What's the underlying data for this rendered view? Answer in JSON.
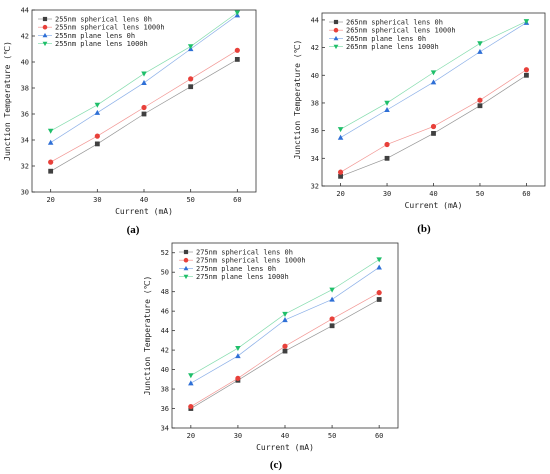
{
  "chart_data": [
    {
      "type": "line",
      "caption": "(a)",
      "title": "",
      "xlabel": "Current (mA)",
      "ylabel": "Junction Temperature (℃)",
      "xlim": [
        16,
        64
      ],
      "ylim": [
        30,
        44
      ],
      "xticks": [
        20,
        30,
        40,
        50,
        60
      ],
      "yticks": [
        30,
        32,
        34,
        36,
        38,
        40,
        42,
        44
      ],
      "legend_position": "top-left",
      "grid": false,
      "x": [
        20,
        30,
        40,
        50,
        60
      ],
      "series": [
        {
          "name": "255nm spherical lens 0h",
          "marker": "square",
          "color": "#404040",
          "values": [
            31.6,
            33.7,
            36.0,
            38.1,
            40.2
          ]
        },
        {
          "name": "255nm spherical lens 1000h",
          "marker": "circle",
          "color": "#e8403a",
          "values": [
            32.3,
            34.3,
            36.5,
            38.7,
            40.9
          ]
        },
        {
          "name": "255nm plane lens 0h",
          "marker": "triangle-up",
          "color": "#2e6fd6",
          "values": [
            33.8,
            36.1,
            38.4,
            41.0,
            43.6
          ]
        },
        {
          "name": "255nm plane lens 1000h",
          "marker": "triangle-down",
          "color": "#1fbf6a",
          "values": [
            34.7,
            36.7,
            39.1,
            41.2,
            43.8
          ]
        }
      ]
    },
    {
      "type": "line",
      "caption": "(b)",
      "title": "",
      "xlabel": "Current (mA)",
      "ylabel": "Junction Temperature (℃)",
      "xlim": [
        16,
        64
      ],
      "ylim": [
        32,
        44.5
      ],
      "xticks": [
        20,
        30,
        40,
        50,
        60
      ],
      "yticks": [
        32,
        34,
        36,
        38,
        40,
        42,
        44
      ],
      "legend_position": "top-left",
      "grid": false,
      "x": [
        20,
        30,
        40,
        50,
        60
      ],
      "series": [
        {
          "name": "265nm spherical lens 0h",
          "marker": "square",
          "color": "#404040",
          "values": [
            32.7,
            34.0,
            35.8,
            37.8,
            40.0
          ]
        },
        {
          "name": "265nm spherical lens 1000h",
          "marker": "circle",
          "color": "#e8403a",
          "values": [
            33.0,
            35.0,
            36.3,
            38.2,
            40.4
          ]
        },
        {
          "name": "265nm plane lens 0h",
          "marker": "triangle-up",
          "color": "#2e6fd6",
          "values": [
            35.5,
            37.5,
            39.5,
            41.7,
            43.8
          ]
        },
        {
          "name": "265nm plane lens 1000h",
          "marker": "triangle-down",
          "color": "#1fbf6a",
          "values": [
            36.1,
            38.0,
            40.2,
            42.3,
            43.9
          ]
        }
      ]
    },
    {
      "type": "line",
      "caption": "(c)",
      "title": "",
      "xlabel": "Current (mA)",
      "ylabel": "Junction Temperature (℃)",
      "xlim": [
        16,
        64
      ],
      "ylim": [
        34,
        53
      ],
      "xticks": [
        20,
        30,
        40,
        50,
        60
      ],
      "yticks": [
        34,
        36,
        38,
        40,
        42,
        44,
        46,
        48,
        50,
        52
      ],
      "legend_position": "top-left",
      "grid": false,
      "x": [
        20,
        30,
        40,
        50,
        60
      ],
      "series": [
        {
          "name": "275nm spherical lens 0h",
          "marker": "square",
          "color": "#404040",
          "values": [
            36.0,
            38.9,
            41.9,
            44.5,
            47.2
          ]
        },
        {
          "name": "275nm spherical lens 1000h",
          "marker": "circle",
          "color": "#e8403a",
          "values": [
            36.2,
            39.1,
            42.4,
            45.2,
            47.9
          ]
        },
        {
          "name": "275nm plane lens 0h",
          "marker": "triangle-up",
          "color": "#2e6fd6",
          "values": [
            38.6,
            41.4,
            45.1,
            47.2,
            50.5
          ]
        },
        {
          "name": "275nm plane lens 1000h",
          "marker": "triangle-down",
          "color": "#1fbf6a",
          "values": [
            39.4,
            42.2,
            45.7,
            48.2,
            51.3
          ]
        }
      ]
    }
  ]
}
